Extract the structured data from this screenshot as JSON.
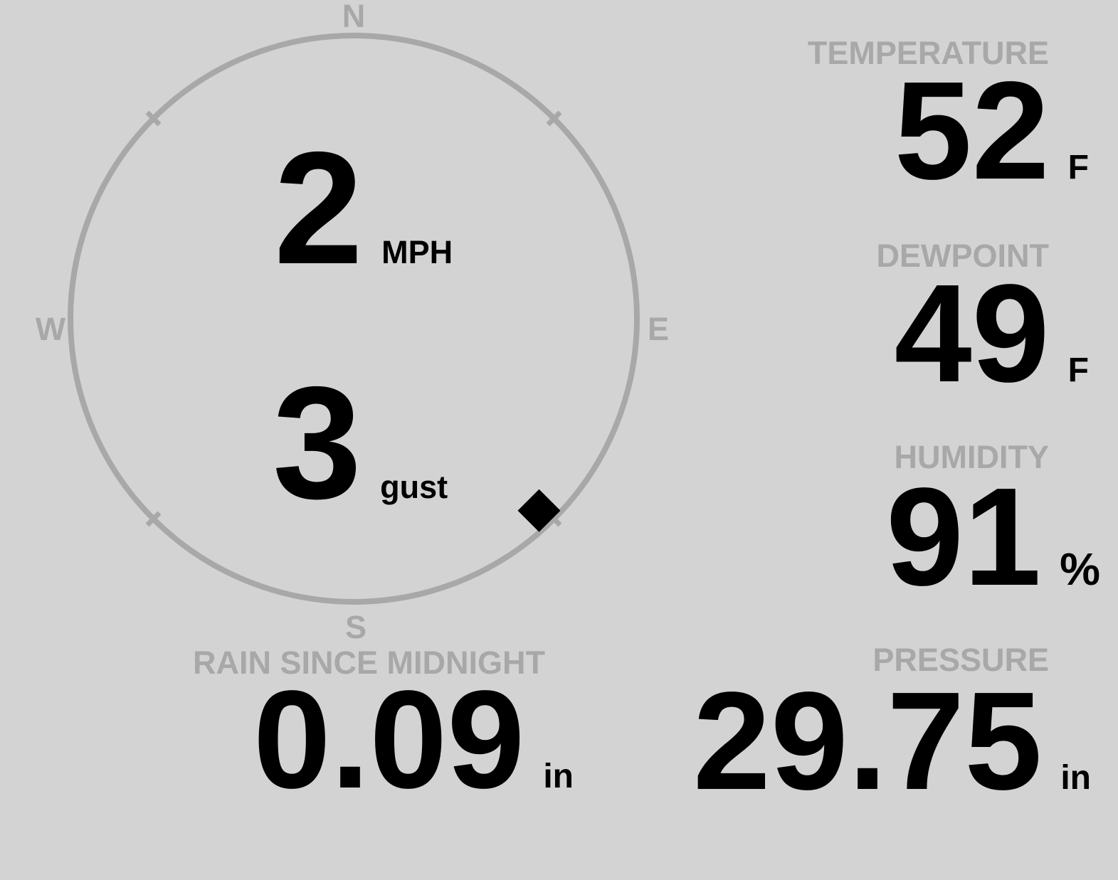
{
  "display": {
    "background_color": "#d3d3d3",
    "muted_color": "#a8a8a8",
    "value_color": "#000000"
  },
  "wind": {
    "compass": {
      "north": "N",
      "east": "E",
      "south": "S",
      "west": "W"
    },
    "direction_deg": 136,
    "speed": {
      "value": "2",
      "unit": "MPH"
    },
    "gust": {
      "value": "3",
      "unit": "gust"
    }
  },
  "metrics": {
    "temperature": {
      "label": "TEMPERATURE",
      "value": "52",
      "unit": "F"
    },
    "dewpoint": {
      "label": "DEWPOINT",
      "value": "49",
      "unit": "F"
    },
    "humidity": {
      "label": "HUMIDITY",
      "value": "91",
      "unit": "%"
    },
    "rain": {
      "label": "RAIN SINCE MIDNIGHT",
      "value": "0.09",
      "unit": "in"
    },
    "pressure": {
      "label": "PRESSURE",
      "value": "29.75",
      "unit": "in"
    }
  }
}
